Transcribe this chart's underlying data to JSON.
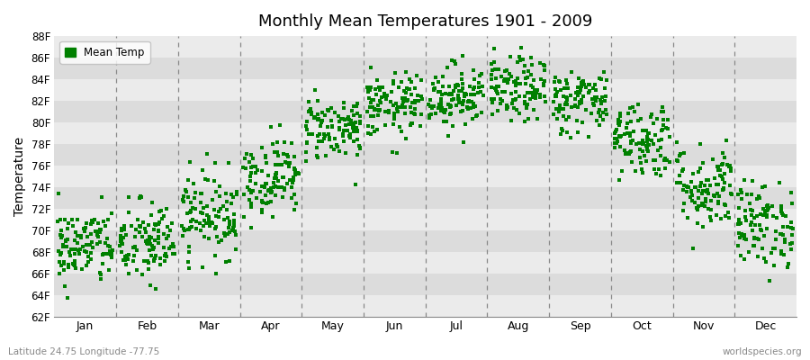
{
  "title": "Monthly Mean Temperatures 1901 - 2009",
  "ylabel": "Temperature",
  "xlabel_labels": [
    "Jan",
    "Feb",
    "Mar",
    "Apr",
    "May",
    "Jun",
    "Jul",
    "Aug",
    "Sep",
    "Oct",
    "Nov",
    "Dec"
  ],
  "legend_label": "Mean Temp",
  "bottom_left_text": "Latitude 24.75 Longitude -77.75",
  "bottom_right_text": "worldspecies.org",
  "ylim": [
    62,
    88
  ],
  "ytick_values": [
    62,
    64,
    66,
    68,
    70,
    72,
    74,
    76,
    78,
    80,
    82,
    84,
    86,
    88
  ],
  "ytick_labels": [
    "62F",
    "64F",
    "66F",
    "68F",
    "70F",
    "72F",
    "74F",
    "76F",
    "78F",
    "80F",
    "82F",
    "84F",
    "86F",
    "88F"
  ],
  "marker_color": "#008000",
  "marker": "s",
  "marker_size": 2.5,
  "bg_color_dark": "#dcdcdc",
  "bg_color_light": "#ebebeb",
  "monthly_means": [
    68.5,
    68.8,
    71.5,
    75.0,
    79.5,
    81.5,
    82.5,
    83.0,
    82.0,
    78.5,
    74.0,
    70.5
  ],
  "monthly_stds": [
    1.8,
    2.0,
    2.0,
    1.8,
    1.5,
    1.5,
    1.5,
    1.5,
    1.5,
    1.8,
    2.0,
    2.0
  ],
  "n_years": 109,
  "seed": 42
}
